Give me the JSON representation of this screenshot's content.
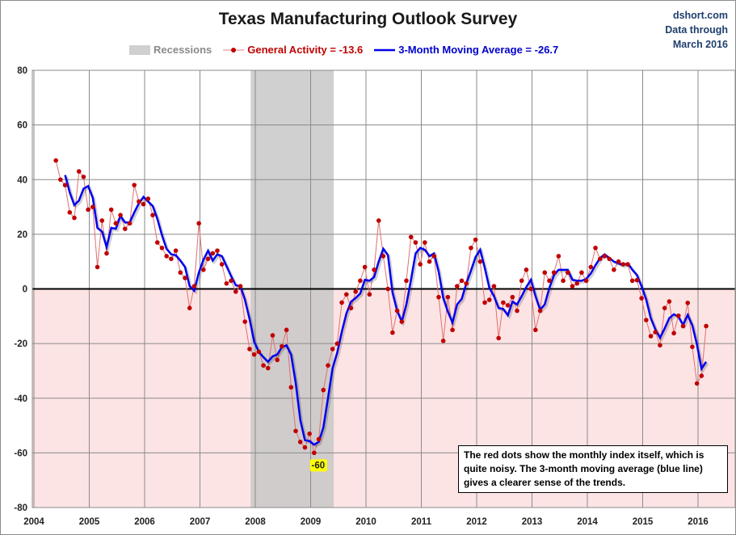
{
  "header": {
    "title": "Texas Manufacturing Outlook Survey",
    "source_lines": [
      "dshort.com",
      "Data through",
      "March 2016"
    ]
  },
  "legend": {
    "recessions": "Recessions",
    "general_activity": "General Activity = -13.6",
    "moving_average": "3-Month Moving Average = -26.7"
  },
  "note": "The red dots show the monthly  index itself, which is quite noisy. The 3-month moving average (blue line) gives a clearer sense of the trends.",
  "annotation": "-60",
  "colors": {
    "series": "#c00000",
    "moving_average": "#0000ee",
    "recession": "#c8c8c8",
    "negative_fill": "#fde4e4",
    "annotation_bg": "#ffff00"
  },
  "chart_data": {
    "type": "line",
    "title": "Texas Manufacturing Outlook Survey",
    "xlim": [
      2004,
      2016.67
    ],
    "ylim": [
      -80,
      80
    ],
    "grid": true,
    "legend_position": "top",
    "x_ticks": [
      "2004",
      "2005",
      "2006",
      "2007",
      "2008",
      "2009",
      "2010",
      "2011",
      "2012",
      "2013",
      "2014",
      "2015",
      "2016"
    ],
    "y_ticks": [
      80,
      60,
      40,
      20,
      0,
      -20,
      -40,
      -60,
      -80
    ],
    "start_month": "2004-06",
    "end_month": "2016-03",
    "recessions": [
      [
        "2007-12",
        "2009-06"
      ]
    ],
    "series": [
      {
        "name": "General Activity",
        "values": [
          47,
          40,
          38,
          28,
          26,
          43,
          41,
          29,
          30,
          8,
          25,
          13,
          29,
          24,
          27,
          22,
          24,
          38,
          32,
          31,
          33,
          27,
          17,
          15,
          12,
          11,
          14,
          6,
          4,
          -7,
          1,
          24,
          7,
          11,
          13,
          14,
          9,
          2,
          3,
          -1,
          1,
          -12,
          -22,
          -24,
          -23,
          -28,
          -29,
          -17,
          -26,
          -21,
          -15,
          -36,
          -52,
          -56,
          -58,
          -53,
          -60,
          -55,
          -37,
          -28,
          -22,
          -20,
          -5,
          -2,
          -7,
          -1,
          3,
          8,
          -2,
          7,
          25,
          12,
          0,
          -16,
          -8,
          -12,
          3,
          19,
          17,
          9,
          17,
          10,
          12,
          -3,
          -19,
          -3,
          -15,
          1,
          3,
          2,
          15,
          18,
          10,
          -5,
          -4,
          1,
          -18,
          -5,
          -6,
          -3,
          -8,
          3,
          7,
          0,
          -15,
          -8,
          6,
          3,
          6,
          12,
          3,
          6,
          1,
          2,
          6,
          3,
          8,
          15,
          11,
          12,
          11,
          7,
          10,
          9,
          9,
          3,
          3.2,
          -3.4,
          -11.4,
          -17.3,
          -15.8,
          -20.6,
          -7,
          -4.6,
          -16.2,
          -9.8,
          -13.6,
          -5.1,
          -21.2,
          -34.6,
          -31.8,
          -13.6
        ]
      },
      {
        "name": "3-Month Moving Average",
        "derived_from": "General Activity",
        "window": 3
      }
    ]
  }
}
